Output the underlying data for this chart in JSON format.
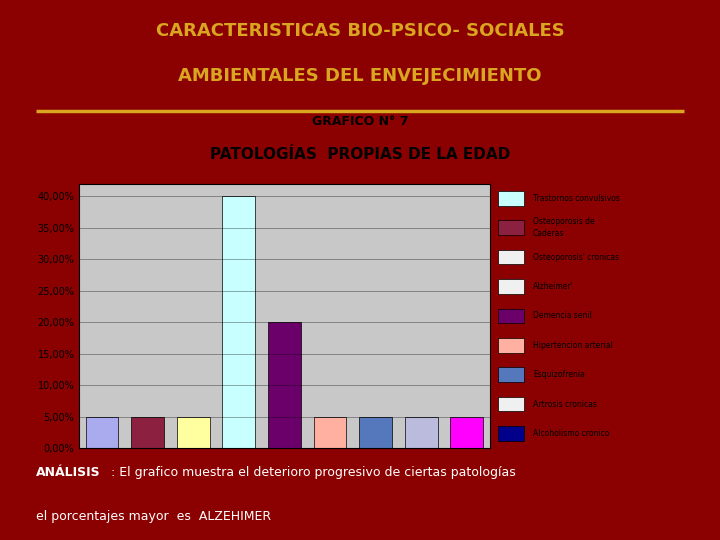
{
  "title_line1": "CARACTERISTICAS BIO-PSICO- SOCIALES",
  "title_line2": "AMBIENTALES DEL ENVEJECIMIENTO",
  "subtitle_line1": "GRAFICO N° 7",
  "subtitle_line2": "PATOLOGÍAS  PROPIAS DE LA EDAD",
  "analysis_bold": "ANÁLISIS",
  "analysis_rest": ": El grafico muestra el deterioro progresivo de ciertas patologías",
  "analysis_line2": "el porcentajes mayor  es  ALZEHIMER",
  "background_color": "#8B0000",
  "chart_bg_color": "#C8C8C8",
  "title_color": "#DAA520",
  "subtitle_color": "#000000",
  "analysis_color": "#FFFFFF",
  "categories": [
    "Trastornos convulsivos",
    "Osteoporosis de\nCaderas",
    "Osteoporosis' cronicas",
    "Alzheimer'",
    "Demencia senil",
    "Hipertencion arterial",
    "Esquizofrenia",
    "Artrosis cronicas",
    "Alcoholismo cronico"
  ],
  "values": [
    5,
    5,
    5,
    40,
    20,
    5,
    5,
    5,
    5
  ],
  "bar_colors": [
    "#AAAAEE",
    "#8B2040",
    "#FFFFA0",
    "#C8FFFF",
    "#6B006B",
    "#FFB0A0",
    "#5577BB",
    "#BBBBDD",
    "#FF00FF"
  ],
  "legend_colors": [
    "#C8FFFF",
    "#8B2040",
    "#F0F0F0",
    "#F0F0F0",
    "#6B006B",
    "#FFB0A0",
    "#5577BB",
    "#F0F0F0",
    "#00008B"
  ],
  "ylim": [
    0,
    42
  ],
  "yticks": [
    0,
    5,
    10,
    15,
    20,
    25,
    30,
    35,
    40
  ],
  "ytick_labels": [
    "0,00%",
    "5,00%",
    "10,00%",
    "15,00%",
    "20,00%",
    "25,00%",
    "30,00%",
    "35,00%",
    "40,00%"
  ],
  "separator_color": "#DAA520",
  "chart_border_color": "#000000"
}
